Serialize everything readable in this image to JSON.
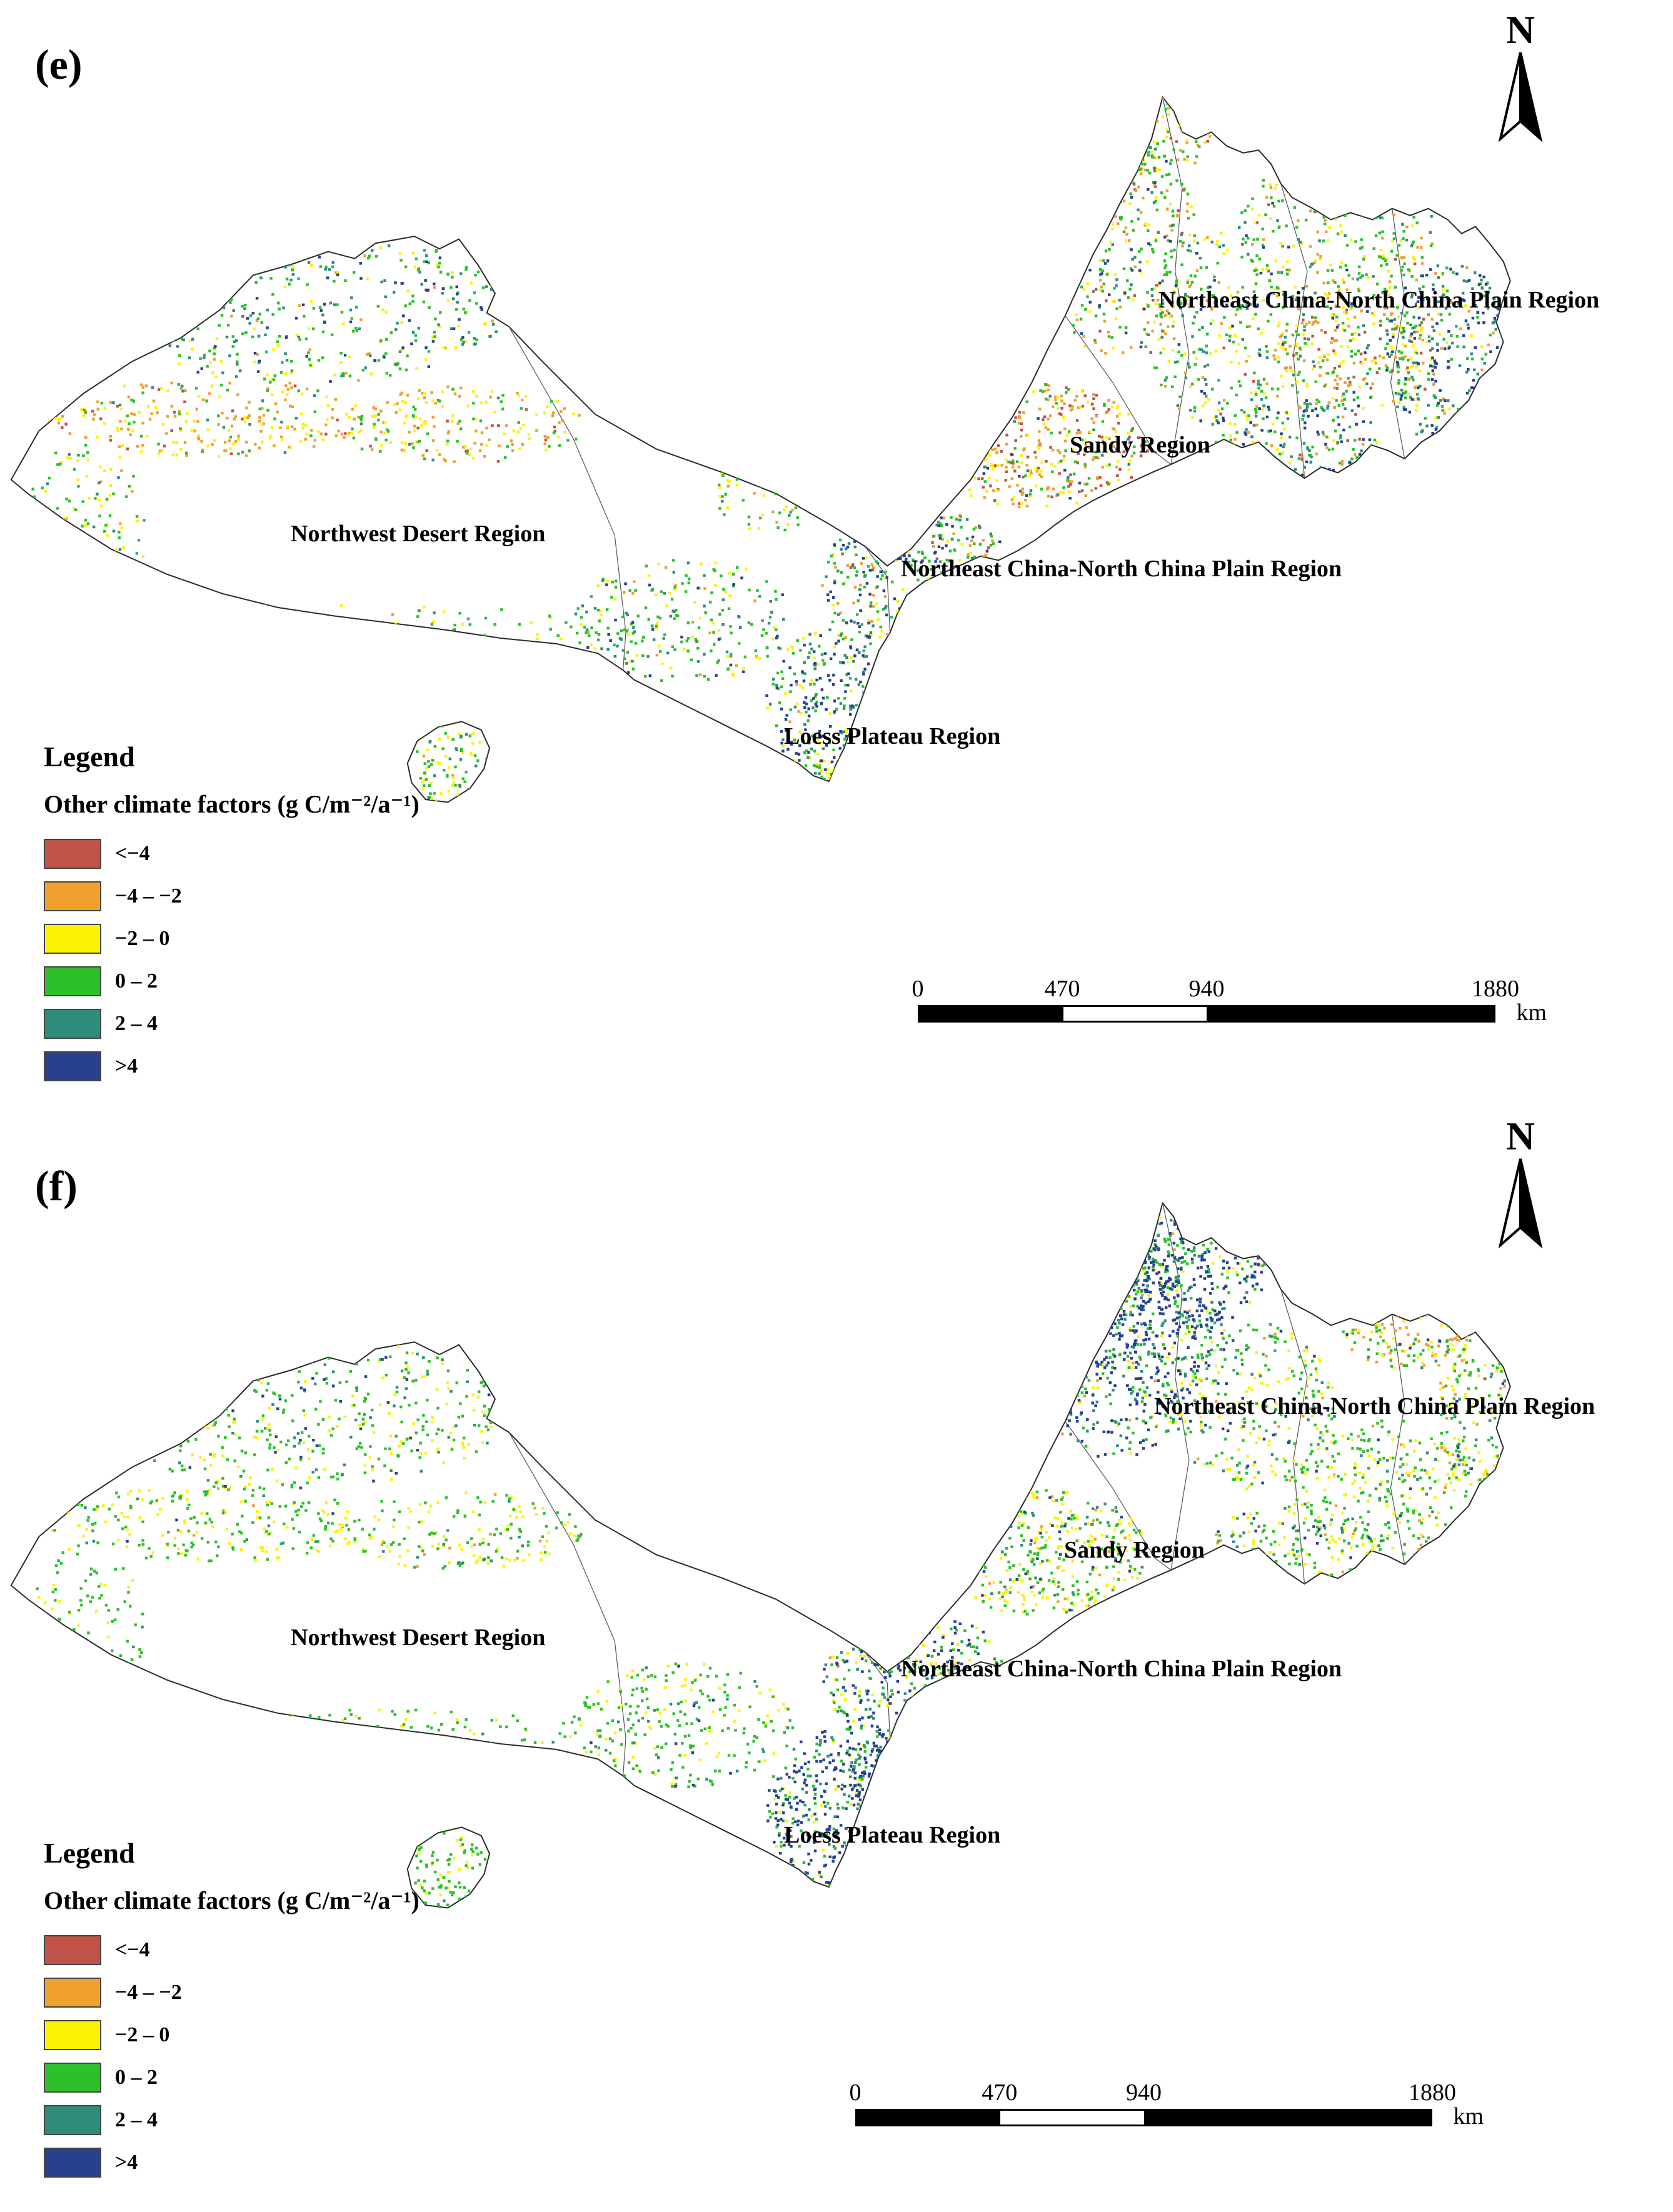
{
  "colors": {
    "classes": [
      {
        "label": "<−4",
        "color": "#BF5347"
      },
      {
        "label": "−4 – −2",
        "color": "#EFA02E"
      },
      {
        "label": "−2 – 0",
        "color": "#FCF303"
      },
      {
        "label": "0 – 2",
        "color": "#2DC02A"
      },
      {
        "label": "2 – 4",
        "color": "#2F8C7D"
      },
      {
        "label": ">4",
        "color": "#27418F"
      }
    ]
  },
  "panels": [
    {
      "id": "e",
      "label": "(e)",
      "north_label": "N",
      "map_labels": {
        "northeast_plain_top": "Northeast China-North China Plain Region",
        "sandy": "Sandy Region",
        "northwest_desert": "Northwest Desert Region",
        "northeast_plain_mid": "Northeast China-North China Plain Region",
        "loess_plateau": "Loess Plateau Region"
      },
      "legend": {
        "title": "Legend",
        "subtitle": "Other climate factors (g C/m⁻²/a⁻¹)"
      },
      "scalebar": {
        "t0": "0",
        "t1": "470",
        "t2": "940",
        "t3": "1880",
        "unit": "km"
      }
    },
    {
      "id": "f",
      "label": "(f)",
      "north_label": "N",
      "map_labels": {
        "northeast_plain_top": "Northeast China-North China Plain Region",
        "sandy": "Sandy Region",
        "northwest_desert": "Northwest Desert Region",
        "northeast_plain_mid": "Northeast China-North China Plain Region",
        "loess_plateau": "Loess Plateau Region"
      },
      "legend": {
        "title": "Legend",
        "subtitle": "Other climate factors (g C/m⁻²/a⁻¹)"
      },
      "scalebar": {
        "t0": "0",
        "t1": "470",
        "t2": "940",
        "t3": "1880",
        "unit": "km"
      }
    }
  ]
}
